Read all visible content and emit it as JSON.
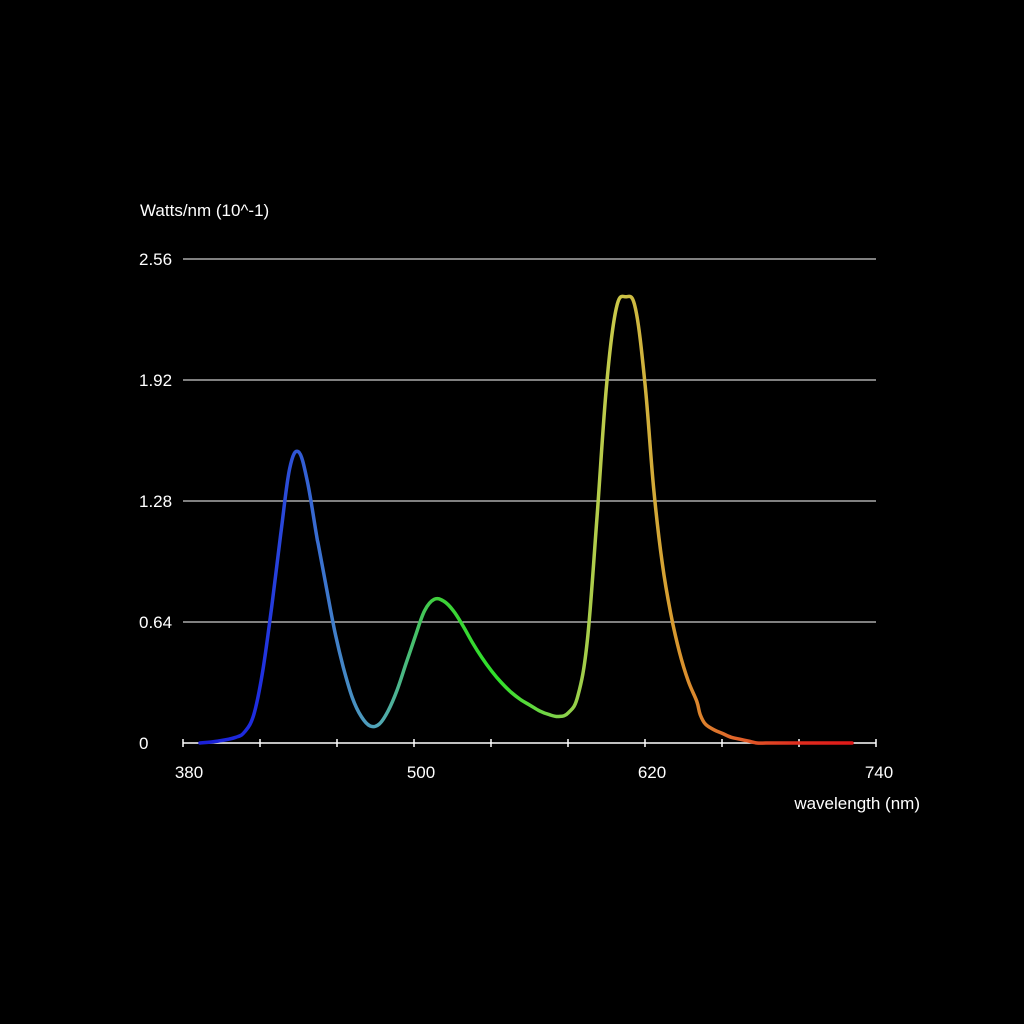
{
  "chart_data": {
    "type": "line",
    "title": "",
    "ylabel": "Watts/nm (10^-1)",
    "xlabel": "wavelength (nm)",
    "xlim": [
      370,
      740
    ],
    "ylim": [
      0,
      2.56
    ],
    "y_ticks": [
      0,
      0.64,
      1.28,
      1.92,
      2.56
    ],
    "y_tick_labels": [
      "0",
      "0.64",
      "1.28",
      "1.92",
      "2.56"
    ],
    "x_minor_ticks": [
      380,
      400,
      420,
      440,
      460,
      480,
      500,
      520,
      540,
      560,
      580,
      600,
      620,
      640,
      660,
      680,
      700,
      720,
      740
    ],
    "x_ticks": [
      380,
      500,
      620,
      740
    ],
    "x_tick_labels": [
      "380",
      "500",
      "620",
      "740"
    ],
    "grid": true,
    "legend": "none",
    "series": [
      {
        "x": [
          380,
          390,
          400,
          405,
          410,
          415,
          420,
          425,
          430,
          435,
          440,
          445,
          446,
          450,
          455,
          460,
          465,
          470,
          475,
          480,
          485,
          490,
          495,
          500,
          505,
          510,
          515,
          520,
          525,
          530,
          535,
          540,
          545,
          550,
          555,
          560,
          565,
          570,
          575,
          580,
          585,
          590,
          595,
          600,
          605,
          610,
          615,
          620,
          625,
          630,
          635,
          640,
          645,
          650,
          652,
          655,
          660,
          665,
          670,
          675,
          680,
          685,
          690,
          695,
          700,
          705,
          710,
          715,
          720,
          725,
          730,
          735,
          740
        ],
        "y": [
          0.0,
          0.01,
          0.03,
          0.06,
          0.15,
          0.38,
          0.72,
          1.1,
          1.45,
          1.54,
          1.38,
          1.1,
          1.05,
          0.85,
          0.6,
          0.4,
          0.24,
          0.14,
          0.09,
          0.1,
          0.17,
          0.28,
          0.42,
          0.56,
          0.7,
          0.76,
          0.75,
          0.7,
          0.62,
          0.53,
          0.45,
          0.38,
          0.32,
          0.27,
          0.23,
          0.2,
          0.17,
          0.15,
          0.14,
          0.16,
          0.25,
          0.55,
          1.2,
          1.9,
          2.3,
          2.36,
          2.3,
          1.9,
          1.35,
          0.95,
          0.68,
          0.48,
          0.33,
          0.22,
          0.15,
          0.1,
          0.07,
          0.05,
          0.03,
          0.02,
          0.01,
          0.0,
          0.0,
          0.0,
          0.0,
          0.0,
          0.0,
          0.0,
          0.0,
          0.0,
          0.0,
          0.0,
          0.0
        ]
      }
    ],
    "gradient_colors": [
      "#1a1fd6",
      "#1f2ee0",
      "#3a6fd0",
      "#52a7b8",
      "#3fcf3a",
      "#2fe02a",
      "#7ed34a",
      "#c9c94a",
      "#d89a2f",
      "#e0662a",
      "#e03020",
      "#e01818"
    ]
  }
}
